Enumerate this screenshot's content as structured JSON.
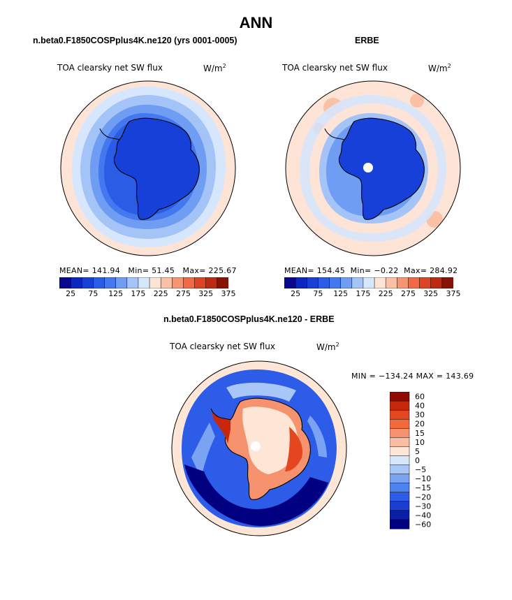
{
  "figure": {
    "title": "ANN"
  },
  "palettes": {
    "absolute": [
      "#08088f",
      "#0b27c0",
      "#1740d8",
      "#2a5ce6",
      "#4478ee",
      "#6f9df3",
      "#a4c4f8",
      "#d6e6fc",
      "#fde4d6",
      "#fbc1a6",
      "#f79572",
      "#ef6a45",
      "#dc4424",
      "#bb2a11",
      "#8a1205"
    ],
    "difference": [
      "#000080",
      "#0a1fa8",
      "#1a3fd0",
      "#2d5ce8",
      "#4d82ef",
      "#7aa4f3",
      "#a8c7f8",
      "#d8e8fc",
      "#fde6d6",
      "#f9bda3",
      "#f6936e",
      "#f26b3e",
      "#e4471f",
      "#c8270c",
      "#900c03"
    ]
  },
  "chart_data": [
    {
      "id": "model",
      "type": "heatmap",
      "projection": "south-polar-stereographic",
      "header": "n.beta0.F1850COSPplus4K.ne120 (yrs 0001-0005)",
      "title": "TOA clearsky net SW flux",
      "units": "W/m",
      "units_exp": "2",
      "stats": {
        "mean_label": "MEAN=",
        "mean": "141.94",
        "min_label": "Min=",
        "min": "51.45",
        "max_label": "Max=",
        "max": "225.67"
      },
      "colorbar": {
        "orientation": "horizontal",
        "levels": [
          25,
          50,
          75,
          100,
          125,
          150,
          175,
          200,
          225,
          250,
          275,
          300,
          325,
          350,
          375
        ],
        "tick_labels": [
          "25",
          "75",
          "125",
          "175",
          "225",
          "275",
          "325",
          "375"
        ]
      }
    },
    {
      "id": "obs",
      "type": "heatmap",
      "projection": "south-polar-stereographic",
      "header": "ERBE",
      "title": "TOA clearsky net SW flux",
      "units": "W/m",
      "units_exp": "2",
      "stats": {
        "mean_label": "MEAN=",
        "mean": "154.45",
        "min_label": "Min=",
        "min": "−0.22",
        "max_label": "Max=",
        "max": "284.92"
      },
      "colorbar": {
        "orientation": "horizontal",
        "levels": [
          25,
          50,
          75,
          100,
          125,
          150,
          175,
          200,
          225,
          250,
          275,
          300,
          325,
          350,
          375
        ],
        "tick_labels": [
          "25",
          "75",
          "125",
          "175",
          "225",
          "275",
          "325",
          "375"
        ]
      }
    },
    {
      "id": "diff",
      "type": "heatmap",
      "projection": "south-polar-stereographic",
      "header": "n.beta0.F1850COSPplus4K.ne120 - ERBE",
      "title": "TOA clearsky net SW flux",
      "units": "W/m",
      "units_exp": "2",
      "range_text": "MIN = −134.24 MAX = 143.69",
      "colorbar": {
        "orientation": "vertical",
        "levels": [
          60,
          40,
          30,
          20,
          15,
          10,
          5,
          0,
          -5,
          -10,
          -15,
          -20,
          -30,
          -40,
          -60
        ],
        "tick_labels": [
          "60",
          "40",
          "30",
          "20",
          "15",
          "10",
          "5",
          "0",
          "−5",
          "−10",
          "−15",
          "−20",
          "−30",
          "−40",
          "−60"
        ]
      }
    }
  ]
}
